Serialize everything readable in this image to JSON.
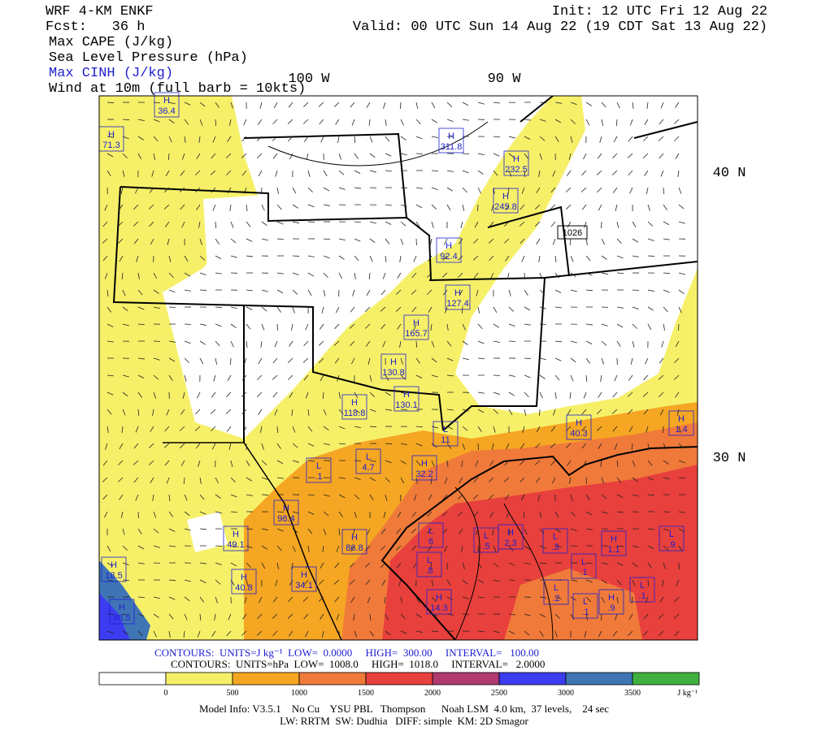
{
  "header": {
    "title": "WRF 4-KM ENKF",
    "forecast": "Fcst:   36 h",
    "init": "Init: 12 UTC Fri 12 Aug 22",
    "valid": "Valid: 00 UTC Sun 14 Aug 22 (19 CDT Sat 13 Aug 22)",
    "fields": [
      "Max CAPE (J/kg)",
      "Sea Level Pressure (hPa)",
      "Max CINH (J/kg)",
      "Wind at 10m (full barb = 10kts)"
    ]
  },
  "map": {
    "lon_labels": [
      "100 W",
      "90 W"
    ],
    "lat_labels": [
      "40 N",
      "30 N"
    ],
    "centers": [
      {
        "kind": "H",
        "value": "36.4"
      },
      {
        "kind": "H",
        "value": "71.3"
      },
      {
        "kind": "H",
        "value": "311.8"
      },
      {
        "kind": "H",
        "value": "232.5"
      },
      {
        "kind": "H",
        "value": "245.8"
      },
      {
        "kind": "H",
        "value": "92.4"
      },
      {
        "kind": "H",
        "value": "127.4"
      },
      {
        "kind": "H",
        "value": "165.7"
      },
      {
        "kind": "H",
        "value": "130.8"
      },
      {
        "kind": "H",
        "value": "130.1"
      },
      {
        "kind": "H",
        "value": "118.8"
      },
      {
        "kind": "L",
        "value": "11"
      },
      {
        "kind": "H",
        "value": "40.3"
      },
      {
        "kind": "L",
        "value": "4.7"
      },
      {
        "kind": "L",
        "value": ".1"
      },
      {
        "kind": "H",
        "value": "32.2"
      },
      {
        "kind": "H",
        "value": "98.4"
      },
      {
        "kind": "H",
        "value": "49.1"
      },
      {
        "kind": "H",
        "value": "86.8"
      },
      {
        "kind": "L",
        "value": "6"
      },
      {
        "kind": "L",
        "value": ".5"
      },
      {
        "kind": "H",
        "value": "2.3"
      },
      {
        "kind": "L",
        "value": ".3"
      },
      {
        "kind": "H",
        "value": "1.1"
      },
      {
        "kind": "L",
        "value": ".9"
      },
      {
        "kind": "L",
        "value": ".8"
      },
      {
        "kind": "L",
        "value": ".1"
      },
      {
        "kind": "H",
        "value": "40.8"
      },
      {
        "kind": "H",
        "value": "34.1"
      },
      {
        "kind": "L",
        "value": ".2"
      },
      {
        "kind": "L",
        "value": ".1"
      },
      {
        "kind": "H",
        "value": ".9"
      },
      {
        "kind": "L",
        "value": ".1"
      },
      {
        "kind": "H",
        "value": "14.3"
      },
      {
        "kind": "H",
        "value": "88.5"
      },
      {
        "kind": "H",
        "value": "1.4"
      },
      {
        "kind": "H",
        "value": "18.5"
      }
    ],
    "pressure_center": "1026"
  },
  "contours": [
    "CONTOURS:  UNITS=J kg⁻¹  LOW=  0.0000     HIGH=  300.00     INTERVAL=   100.00",
    "CONTOURS:  UNITS=hPa  LOW=  1008.0     HIGH=  1018.0     INTERVAL=   2.0000"
  ],
  "colorbar": {
    "colors": [
      "#ffffff",
      "#f6f069",
      "#f5a623",
      "#f07a3a",
      "#e8403c",
      "#b03a70",
      "#3c3cf0",
      "#4075b5",
      "#40b040"
    ],
    "labels": [
      "0",
      "500",
      "1000",
      "1500",
      "2000",
      "2500",
      "3000",
      "3500"
    ],
    "unit": "J kg⁻¹"
  },
  "footer": [
    "Model Info: V3.5.1    No Cu    YSU PBL   Thompson      Noah LSM  4.0 km,  37 levels,    24 sec",
    "LW: RRTM  SW: Dudhia   DIFF: simple  KM: 2D Smagor"
  ]
}
